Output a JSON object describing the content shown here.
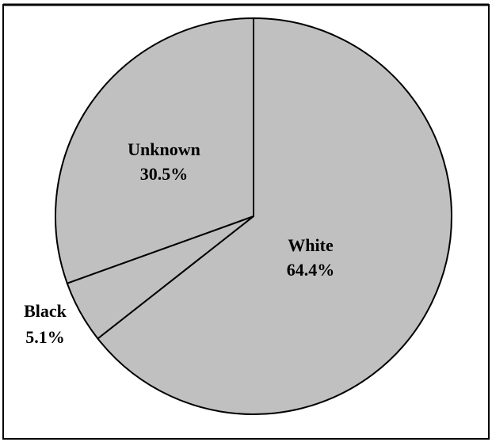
{
  "chart_data": {
    "type": "pie",
    "title": "",
    "slices": [
      {
        "label": "White",
        "value": 64.4,
        "display": "64.4%"
      },
      {
        "label": "Black",
        "value": 5.1,
        "display": "5.1%"
      },
      {
        "label": "Unknown",
        "value": 30.5,
        "display": "30.5%"
      }
    ],
    "start_angle_deg": 0,
    "direction": "clockwise",
    "colors": {
      "slice_fill": "#c0c0c0",
      "slice_stroke": "#000000",
      "frame": "#000000",
      "background": "#ffffff"
    },
    "legend": "none",
    "labels_position": "inside-and-outside"
  }
}
